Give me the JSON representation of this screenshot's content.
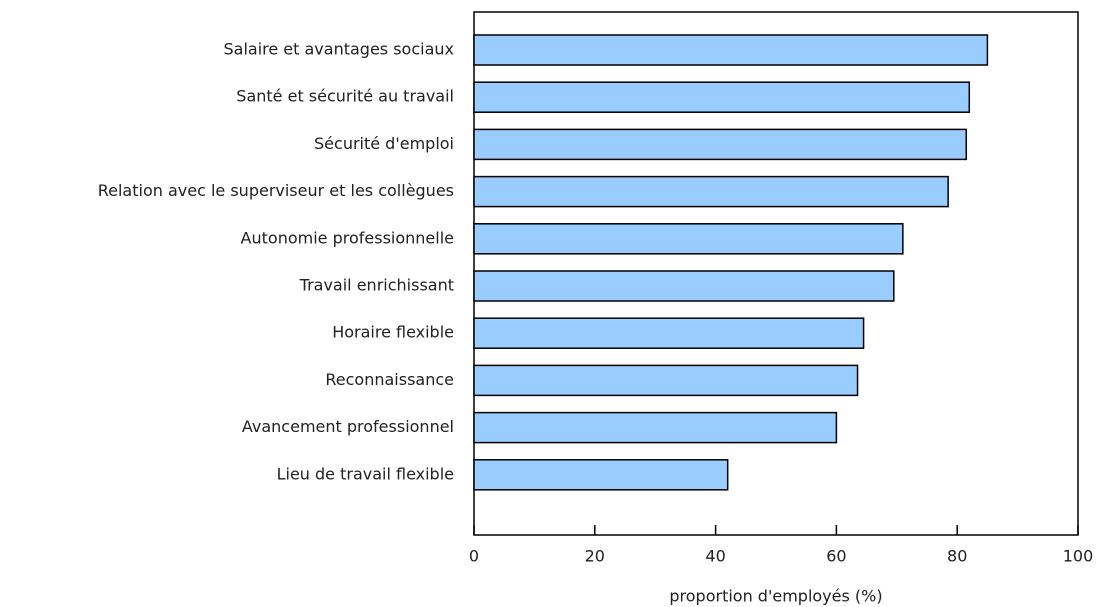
{
  "chart_data": {
    "type": "bar",
    "orientation": "horizontal",
    "x_label": "proportion d'employés (%)",
    "categories": [
      "Salaire et avantages sociaux",
      "Santé et sécurité au travail",
      "Sécurité d'emploi",
      "Relation avec le superviseur et les collègues",
      "Autonomie professionnelle",
      "Travail enrichissant",
      "Horaire flexible",
      "Reconnaissance",
      "Avancement professionnel",
      "Lieu de travail flexible"
    ],
    "values": [
      85,
      82,
      81.5,
      78.5,
      71,
      69.5,
      64.5,
      63.5,
      60,
      42
    ],
    "color": "#99ccff",
    "xlim": [
      0,
      100
    ],
    "xticks": [
      0,
      20,
      40,
      60,
      80,
      100
    ],
    "grid": false
  }
}
